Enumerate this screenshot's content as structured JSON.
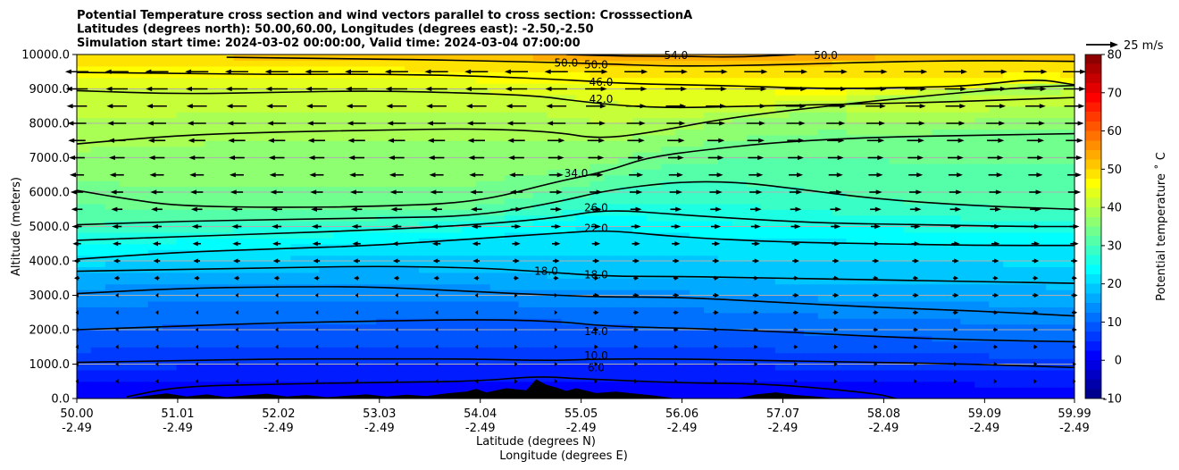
{
  "chart_data": {
    "type": "heatmap",
    "title_lines": [
      "Potential Temperature cross section and wind vectors parallel to cross section: CrosssectionA",
      "Latitudes (degrees north): 50.00,60.00, Longitudes (degrees east): -2.50,-2.50",
      "Simulation start time: 2024-03-02 00:00:00, Valid time: 2024-03-04 07:00:00"
    ],
    "xlabel_line1": "Latitude (degrees N)",
    "xlabel_line2": "Longitude (degrees E)",
    "ylabel": "Altitude (meters)",
    "xlim": [
      50.0,
      59.99
    ],
    "ylim": [
      0,
      10000
    ],
    "x_ticks": [
      {
        "lat": "50.00",
        "lon": "-2.49",
        "value": 50.0
      },
      {
        "lat": "51.01",
        "lon": "-2.49",
        "value": 51.01
      },
      {
        "lat": "52.02",
        "lon": "-2.49",
        "value": 52.02
      },
      {
        "lat": "53.03",
        "lon": "-2.49",
        "value": 53.03
      },
      {
        "lat": "54.04",
        "lon": "-2.49",
        "value": 54.04
      },
      {
        "lat": "55.05",
        "lon": "-2.49",
        "value": 55.05
      },
      {
        "lat": "56.06",
        "lon": "-2.49",
        "value": 56.06
      },
      {
        "lat": "57.07",
        "lon": "-2.49",
        "value": 57.07
      },
      {
        "lat": "58.08",
        "lon": "-2.49",
        "value": 58.08
      },
      {
        "lat": "59.09",
        "lon": "-2.49",
        "value": 59.09
      },
      {
        "lat": "59.99",
        "lon": "-2.49",
        "value": 59.99
      }
    ],
    "y_ticks": [
      "0.0",
      "1000.0",
      "2000.0",
      "3000.0",
      "4000.0",
      "5000.0",
      "6000.0",
      "7000.0",
      "8000.0",
      "9000.0",
      "10000.0"
    ],
    "y_tick_values": [
      0,
      1000,
      2000,
      3000,
      4000,
      5000,
      6000,
      7000,
      8000,
      9000,
      10000
    ],
    "grid_y": true,
    "colorbar": {
      "label": "Potential temperature $^\\circ$C",
      "label_display": "Potential temperature ˚ C",
      "min": -10,
      "max": 80,
      "ticks": [
        "-10",
        "0",
        "10",
        "20",
        "30",
        "40",
        "50",
        "60",
        "70",
        "80"
      ],
      "tick_values": [
        -10,
        0,
        10,
        20,
        30,
        40,
        50,
        60,
        70,
        80
      ],
      "colormap": "jet"
    },
    "quiver_key": {
      "label": "25 m/s",
      "speed": 25
    },
    "contour_levels": [
      2,
      6,
      10,
      14,
      18,
      22,
      26,
      30,
      34,
      38,
      42,
      46,
      50,
      54
    ],
    "contour_labels": [
      {
        "text": "50.0",
        "x": 54.9,
        "y": 9750
      },
      {
        "text": "50.0",
        "x": 55.2,
        "y": 9700
      },
      {
        "text": "54.0",
        "x": 56.0,
        "y": 9980
      },
      {
        "text": "50.0",
        "x": 57.5,
        "y": 9980
      },
      {
        "text": "46.0",
        "x": 55.25,
        "y": 9200
      },
      {
        "text": "42.0",
        "x": 55.25,
        "y": 8700
      },
      {
        "text": "34.0",
        "x": 55.0,
        "y": 6550
      },
      {
        "text": "26.0",
        "x": 55.2,
        "y": 5550
      },
      {
        "text": "22.0",
        "x": 55.2,
        "y": 4950
      },
      {
        "text": "18.0",
        "x": 54.7,
        "y": 3700
      },
      {
        "text": "18.0",
        "x": 55.2,
        "y": 3600
      },
      {
        "text": "14.0",
        "x": 55.2,
        "y": 1950
      },
      {
        "text": "10.0",
        "x": 55.2,
        "y": 1250
      },
      {
        "text": "6.0",
        "x": 55.2,
        "y": 900
      }
    ],
    "contours": [
      {
        "level": 54,
        "x": [
          54.9,
          55.5,
          56.0,
          56.6,
          57.2
        ],
        "y": [
          10000,
          9950,
          9950,
          9920,
          10000
        ]
      },
      {
        "level": 50,
        "x": [
          51.5,
          52.5,
          53.5,
          54.6,
          55.2,
          56.0,
          57.0,
          58.0,
          59.0,
          59.99
        ],
        "y": [
          9920,
          9880,
          9850,
          9780,
          9740,
          9650,
          9700,
          9780,
          9830,
          9800
        ]
      },
      {
        "level": 46,
        "x": [
          50.0,
          51.0,
          52.0,
          53.0,
          54.0,
          55.0,
          55.5,
          56.5,
          57.5,
          58.5,
          59.0,
          59.6,
          59.99
        ],
        "y": [
          9480,
          9450,
          9420,
          9430,
          9380,
          9250,
          9150,
          9100,
          9000,
          9050,
          9100,
          9300,
          9120
        ]
      },
      {
        "level": 42,
        "x": [
          50.0,
          51.0,
          52.0,
          53.0,
          54.0,
          54.6,
          55.0,
          55.5,
          56.0,
          56.5,
          57.5,
          58.5,
          59.5,
          59.99
        ],
        "y": [
          8950,
          8850,
          8900,
          8950,
          8870,
          8800,
          8650,
          8500,
          8450,
          8480,
          8550,
          8600,
          8700,
          8750
        ]
      },
      {
        "level": 38,
        "x": [
          50.0,
          51.0,
          52.0,
          53.0,
          54.0,
          54.8,
          55.2,
          55.7,
          56.5,
          57.5,
          58.5,
          59.5,
          59.99
        ],
        "y": [
          7400,
          7650,
          7750,
          7800,
          7850,
          7750,
          7550,
          7700,
          8150,
          8500,
          8800,
          9050,
          9100
        ]
      },
      {
        "level": 34,
        "x": [
          50.0,
          50.5,
          51.0,
          52.0,
          53.0,
          54.0,
          54.8,
          55.3,
          55.7,
          56.2,
          57.0,
          58.0,
          59.0,
          59.99
        ],
        "y": [
          6050,
          5800,
          5600,
          5550,
          5580,
          5700,
          6300,
          6600,
          7000,
          7200,
          7450,
          7600,
          7650,
          7700
        ]
      },
      {
        "level": 30,
        "x": [
          50.0,
          51.0,
          52.0,
          53.0,
          54.0,
          54.8,
          55.3,
          56.0,
          56.6,
          57.2,
          58.0,
          59.0,
          59.99
        ],
        "y": [
          5050,
          5150,
          5200,
          5250,
          5300,
          5700,
          6050,
          6300,
          6300,
          6100,
          5800,
          5600,
          5500
        ]
      },
      {
        "level": 26,
        "x": [
          50.0,
          51.0,
          52.0,
          53.0,
          54.0,
          54.8,
          55.3,
          56.0,
          56.8,
          57.5,
          58.5,
          59.5,
          59.99
        ],
        "y": [
          4600,
          4700,
          4800,
          4900,
          5050,
          5250,
          5500,
          5350,
          5200,
          5100,
          5050,
          5000,
          5000
        ]
      },
      {
        "level": 22,
        "x": [
          50.0,
          51.0,
          52.0,
          53.0,
          54.0,
          54.8,
          55.3,
          56.0,
          57.0,
          58.0,
          59.0,
          59.99
        ],
        "y": [
          4050,
          4250,
          4350,
          4450,
          4650,
          4800,
          4900,
          4700,
          4550,
          4500,
          4450,
          4450
        ]
      },
      {
        "level": 18,
        "x": [
          50.0,
          51.0,
          52.0,
          53.0,
          54.0,
          54.6,
          55.3,
          56.0,
          57.0,
          58.0,
          59.0,
          59.99
        ],
        "y": [
          3700,
          3750,
          3800,
          3850,
          3800,
          3700,
          3550,
          3550,
          3500,
          3450,
          3400,
          3350
        ]
      },
      {
        "level": 14,
        "x": [
          50.0,
          51.0,
          52.0,
          53.0,
          54.0,
          54.8,
          55.3,
          56.0,
          57.0,
          58.0,
          59.0,
          59.99
        ],
        "y": [
          3050,
          3200,
          3250,
          3250,
          3100,
          3000,
          2950,
          2950,
          2800,
          2650,
          2550,
          2400
        ]
      },
      {
        "level": 10,
        "x": [
          50.0,
          51.0,
          52.0,
          53.0,
          54.0,
          54.8,
          55.3,
          56.0,
          57.0,
          58.0,
          59.0,
          59.99
        ],
        "y": [
          2000,
          2100,
          2200,
          2250,
          2300,
          2250,
          2100,
          2050,
          1950,
          1800,
          1700,
          1650
        ]
      },
      {
        "level": 6,
        "x": [
          50.0,
          51.0,
          52.0,
          53.0,
          54.0,
          54.7,
          55.3,
          56.0,
          57.0,
          58.0,
          59.0,
          59.99
        ],
        "y": [
          1050,
          1100,
          1150,
          1150,
          1150,
          1100,
          1150,
          1150,
          1100,
          1050,
          1000,
          900
        ]
      },
      {
        "level": 2,
        "x": [
          50.5,
          51.0,
          52.0,
          53.0,
          54.0,
          54.6,
          55.0,
          55.5,
          56.0,
          57.0,
          58.0,
          58.2
        ],
        "y": [
          50,
          350,
          420,
          470,
          500,
          650,
          580,
          520,
          460,
          420,
          150,
          0
        ]
      }
    ],
    "terrain": {
      "x": [
        50.5,
        50.7,
        50.9,
        51.1,
        51.3,
        51.5,
        51.7,
        51.9,
        52.1,
        52.3,
        52.5,
        52.7,
        52.9,
        53.1,
        53.3,
        53.5,
        53.7,
        53.9,
        54.0,
        54.1,
        54.3,
        54.5,
        54.6,
        54.7,
        54.8,
        54.9,
        55.0,
        55.2,
        55.4,
        55.6,
        55.8,
        56.0,
        56.2,
        56.4,
        56.6,
        56.8,
        57.0,
        57.2,
        57.4,
        57.6
      ],
      "y": [
        0,
        80,
        150,
        60,
        120,
        40,
        90,
        140,
        60,
        100,
        40,
        80,
        120,
        60,
        110,
        70,
        150,
        200,
        280,
        180,
        300,
        240,
        560,
        400,
        320,
        220,
        300,
        160,
        200,
        140,
        80,
        0,
        0,
        0,
        0,
        120,
        180,
        100,
        60,
        0
      ]
    },
    "wind_vectors_u_ms": {
      "note_units": "m/s, positive toward north",
      "heights": [
        500,
        1000,
        1500,
        2000,
        2500,
        3000,
        3500,
        4000,
        4500,
        5000,
        5500,
        6000,
        6500,
        7000,
        7500,
        8000,
        8500,
        9000,
        9500
      ],
      "columns_lat": [
        50.0,
        50.4,
        50.8,
        51.2,
        51.6,
        52.0,
        52.4,
        52.8,
        53.2,
        53.6,
        54.0,
        54.4,
        54.8,
        55.2,
        55.6,
        56.0,
        56.4,
        56.8,
        57.2,
        57.6,
        58.0,
        58.4,
        58.8,
        59.2,
        59.6,
        59.99
      ]
    }
  }
}
